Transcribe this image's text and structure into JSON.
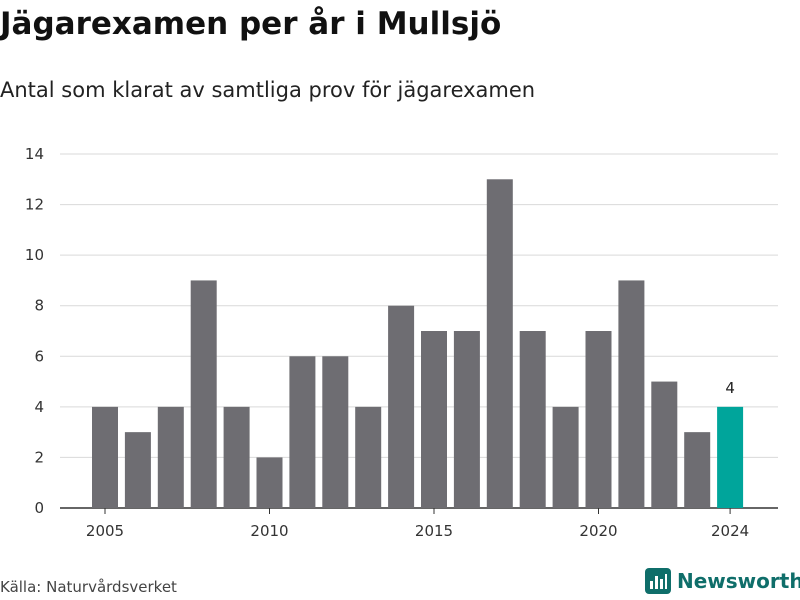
{
  "header": {
    "title": "Jägarexamen per år i Mullsjö",
    "subtitle": "Antal som klarat av samtliga prov för jägarexamen"
  },
  "footer": {
    "source": "Källa: Naturvårdsverket",
    "brand": "Newsworthy",
    "brand_icon": "bar-chart-icon"
  },
  "colors": {
    "bar": "#6e6d72",
    "highlight": "#00a59b",
    "grid": "#d9d9d9",
    "axis": "#333333",
    "brand": "#0f6e6a"
  },
  "chart_data": {
    "type": "bar",
    "title": "Jägarexamen per år i Mullsjö",
    "subtitle": "Antal som klarat av samtliga prov för jägarexamen",
    "x": [
      2005,
      2006,
      2007,
      2008,
      2009,
      2010,
      2011,
      2012,
      2013,
      2014,
      2015,
      2016,
      2017,
      2018,
      2019,
      2020,
      2021,
      2022,
      2023,
      2024
    ],
    "values": [
      4,
      3,
      4,
      9,
      4,
      2,
      6,
      6,
      4,
      8,
      7,
      7,
      13,
      7,
      4,
      7,
      9,
      5,
      3,
      4
    ],
    "highlight_index": 19,
    "data_labels": [
      {
        "index": 19,
        "text": "4"
      }
    ],
    "x_ticks": [
      "2005",
      "2010",
      "2015",
      "2020",
      "2024"
    ],
    "y_ticks": [
      "0",
      "2",
      "4",
      "6",
      "8",
      "10",
      "12",
      "14"
    ],
    "ylim": [
      0,
      14
    ],
    "grid": true,
    "xlabel": "",
    "ylabel": ""
  }
}
